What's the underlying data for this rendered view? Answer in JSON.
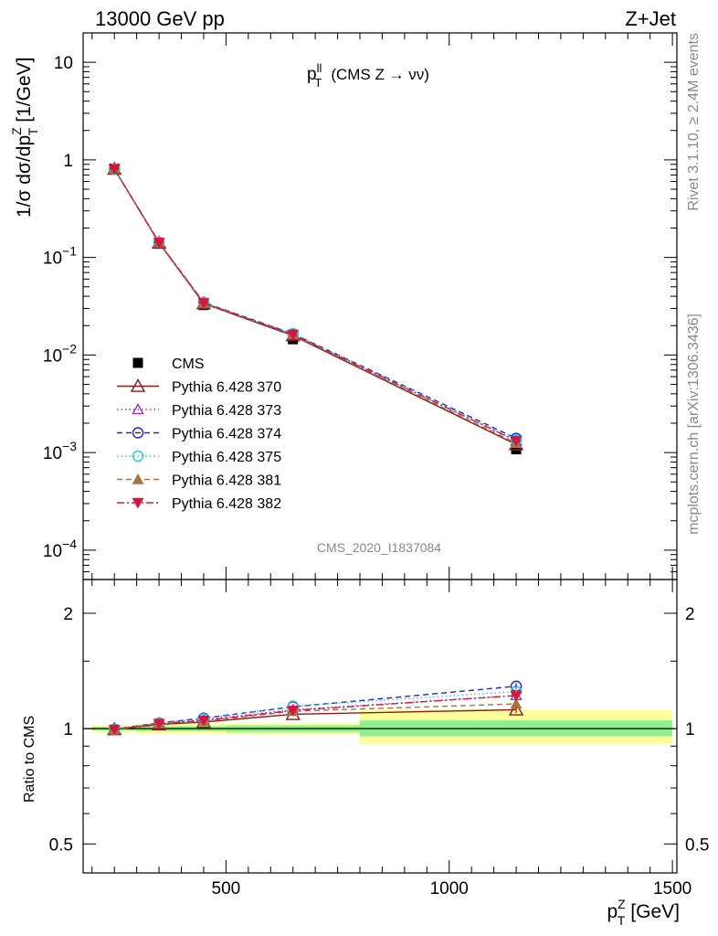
{
  "header": {
    "left": "13000 GeV pp",
    "right": "Z+Jet"
  },
  "side_labels": {
    "rivet": "Rivet 3.1.10, ≥ 2.4M events",
    "source": "mcplots.cern.ch [arXiv:1306.3436]"
  },
  "colors": {
    "cms": "#000000",
    "s370": "#8b1a1a",
    "s373": "#9a32cd",
    "s374": "#2323cc",
    "s375": "#1ed6c8",
    "s381": "#a87444",
    "s382": "#dc143c",
    "band_inner": "#90ee90",
    "band_outer": "#ffff99"
  },
  "chart_data": [
    {
      "type": "line",
      "title_base": "p",
      "title_sup": "ll",
      "title_sub": "T",
      "title_rest": "(CMS Z → νν)",
      "ylabel": "1/σ dσ/dp",
      "ylabel_sup": "Z",
      "ylabel_sub": "T",
      "ylabel_unit": "[1/GeV]",
      "yscale": "log",
      "ylim": [
        5e-05,
        20
      ],
      "xlim": [
        180,
        1510
      ],
      "y_ticks": [
        {
          "base": "10",
          "exp": "",
          "v": 10
        },
        {
          "base": "1",
          "exp": "",
          "v": 1
        },
        {
          "base": "10",
          "exp": "−1",
          "v": 0.1
        },
        {
          "base": "10",
          "exp": "−2",
          "v": 0.01
        },
        {
          "base": "10",
          "exp": "−3",
          "v": 0.001
        },
        {
          "base": "10",
          "exp": "−4",
          "v": 0.0001
        }
      ],
      "watermark": "CMS_2020_I1837084",
      "x": [
        250,
        350,
        450,
        650,
        1150
      ],
      "series": [
        {
          "name": "CMS",
          "key": "cms",
          "values": [
            0.81,
            0.138,
            0.0325,
            0.0145,
            0.00108
          ]
        },
        {
          "name": "Pythia 6.428 370",
          "key": "s370",
          "values": [
            0.805,
            0.141,
            0.0337,
            0.0158,
            0.00121
          ]
        },
        {
          "name": "Pythia 6.428 373",
          "key": "s373",
          "values": [
            0.806,
            0.143,
            0.0343,
            0.0163,
            0.00132
          ]
        },
        {
          "name": "Pythia 6.428 374",
          "key": "s374",
          "values": [
            0.807,
            0.143,
            0.0346,
            0.0165,
            0.0014
          ]
        },
        {
          "name": "Pythia 6.428 375",
          "key": "s375",
          "values": [
            0.806,
            0.143,
            0.0345,
            0.0166,
            0.00135
          ]
        },
        {
          "name": "Pythia 6.428 381",
          "key": "s381",
          "values": [
            0.805,
            0.142,
            0.034,
            0.0161,
            0.00125
          ]
        },
        {
          "name": "Pythia 6.428 382",
          "key": "s382",
          "values": [
            0.805,
            0.142,
            0.0341,
            0.0162,
            0.00132
          ]
        }
      ]
    },
    {
      "type": "line",
      "ylabel": "Ratio to CMS",
      "ylim": [
        0.42,
        2.45
      ],
      "yscale": "log",
      "y_ticks": [
        {
          "label": "2",
          "v": 2
        },
        {
          "label": "1",
          "v": 1
        },
        {
          "label": "0.5",
          "v": 0.5
        }
      ],
      "x_ticks": [
        {
          "label": "500",
          "v": 500
        },
        {
          "label": "1000",
          "v": 1000
        },
        {
          "label": "1500",
          "v": 1500
        }
      ],
      "xlabel": "p",
      "xlabel_sup": "Z",
      "xlabel_sub": "T",
      "xlabel_unit": "[GeV]",
      "bands": [
        {
          "x0": 200,
          "x1": 300,
          "inner": [
            0.99,
            1.01
          ],
          "outer": [
            0.98,
            1.02
          ]
        },
        {
          "x0": 300,
          "x1": 500,
          "inner": [
            0.985,
            1.015
          ],
          "outer": [
            0.97,
            1.03
          ]
        },
        {
          "x0": 500,
          "x1": 800,
          "inner": [
            0.98,
            1.02
          ],
          "outer": [
            0.965,
            1.035
          ]
        },
        {
          "x0": 800,
          "x1": 1500,
          "inner": [
            0.955,
            1.05
          ],
          "outer": [
            0.91,
            1.12
          ]
        }
      ],
      "x": [
        250,
        350,
        450,
        650,
        1150
      ],
      "series": [
        {
          "name": "Pythia 6.428 370",
          "key": "s370",
          "values": [
            0.995,
            1.025,
            1.04,
            1.09,
            1.12
          ]
        },
        {
          "name": "Pythia 6.428 373",
          "key": "s373",
          "values": [
            0.996,
            1.035,
            1.055,
            1.12,
            1.22
          ]
        },
        {
          "name": "Pythia 6.428 374",
          "key": "s374",
          "values": [
            0.997,
            1.035,
            1.065,
            1.14,
            1.29
          ]
        },
        {
          "name": "Pythia 6.428 375",
          "key": "s375",
          "values": [
            0.996,
            1.035,
            1.06,
            1.145,
            1.25
          ]
        },
        {
          "name": "Pythia 6.428 381",
          "key": "s381",
          "values": [
            0.994,
            1.03,
            1.045,
            1.11,
            1.16
          ]
        },
        {
          "name": "Pythia 6.428 382",
          "key": "s382",
          "values": [
            0.995,
            1.03,
            1.05,
            1.115,
            1.22
          ]
        }
      ]
    }
  ]
}
